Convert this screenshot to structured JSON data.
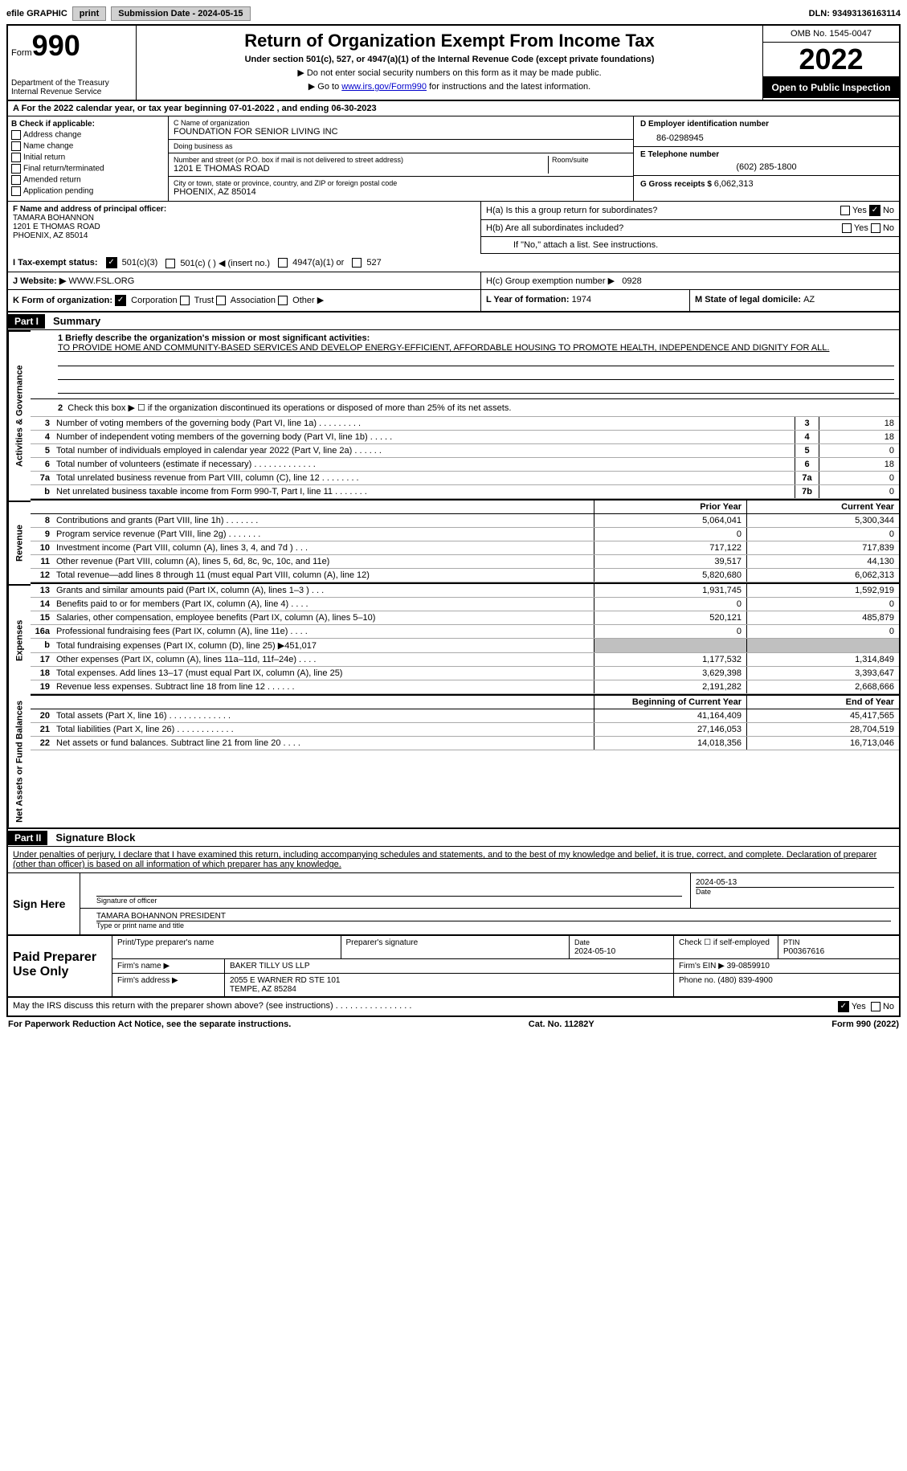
{
  "topbar": {
    "efile": "efile GRAPHIC",
    "print": "print",
    "submission_label": "Submission Date - ",
    "submission_date": "2024-05-15",
    "dln_label": "DLN: ",
    "dln": "93493136163114"
  },
  "header": {
    "form_label": "Form",
    "form_number": "990",
    "dept": "Department of the Treasury Internal Revenue Service",
    "title": "Return of Organization Exempt From Income Tax",
    "sub": "Under section 501(c), 527, or 4947(a)(1) of the Internal Revenue Code (except private foundations)",
    "note1": "▶ Do not enter social security numbers on this form as it may be made public.",
    "note2_pre": "▶ Go to ",
    "note2_link": "www.irs.gov/Form990",
    "note2_post": " for instructions and the latest information.",
    "omb": "OMB No. 1545-0047",
    "year": "2022",
    "inspection": "Open to Public Inspection"
  },
  "period": {
    "text": "A For the 2022 calendar year, or tax year beginning 07-01-2022    , and ending 06-30-2023"
  },
  "sectionB": {
    "label": "B Check if applicable:",
    "opts": [
      "Address change",
      "Name change",
      "Initial return",
      "Final return/terminated",
      "Amended return",
      "Application pending"
    ]
  },
  "sectionC": {
    "name_label": "C Name of organization",
    "name": "FOUNDATION FOR SENIOR LIVING INC",
    "dba_label": "Doing business as",
    "dba": "",
    "street_label": "Number and street (or P.O. box if mail is not delivered to street address)",
    "room_label": "Room/suite",
    "street": "1201 E THOMAS ROAD",
    "city_label": "City or town, state or province, country, and ZIP or foreign postal code",
    "city": "PHOENIX, AZ  85014"
  },
  "sectionD": {
    "label": "D Employer identification number",
    "value": "86-0298945"
  },
  "sectionE": {
    "label": "E Telephone number",
    "value": "(602) 285-1800"
  },
  "sectionG": {
    "label": "G Gross receipts $ ",
    "value": "6,062,313"
  },
  "sectionF": {
    "label": "F Name and address of principal officer:",
    "name": "TAMARA BOHANNON",
    "street": "1201 E THOMAS ROAD",
    "city": "PHOENIX, AZ  85014"
  },
  "sectionH": {
    "ha_label": "H(a)  Is this a group return for subordinates?",
    "hb_label": "H(b)  Are all subordinates included?",
    "hb_note": "If \"No,\" attach a list. See instructions.",
    "hc_label": "H(c)  Group exemption number ▶",
    "hc_value": "0928",
    "yes": "Yes",
    "no": "No"
  },
  "sectionI": {
    "label": "I  Tax-exempt status:",
    "c3": "501(c)(3)",
    "c": "501(c) (  ) ◀ (insert no.)",
    "a1": "4947(a)(1) or",
    "s527": "527"
  },
  "sectionJ": {
    "label": "J  Website: ▶",
    "value": "WWW.FSL.ORG"
  },
  "sectionK": {
    "label": "K Form of organization:",
    "opts": [
      "Corporation",
      "Trust",
      "Association",
      "Other ▶"
    ]
  },
  "sectionL": {
    "label": "L Year of formation: ",
    "value": "1974"
  },
  "sectionM": {
    "label": "M State of legal domicile: ",
    "value": "AZ"
  },
  "part1": {
    "header": "Part I",
    "title": "Summary",
    "line1_label": "1  Briefly describe the organization's mission or most significant activities:",
    "mission": "TO PROVIDE HOME AND COMMUNITY-BASED SERVICES AND DEVELOP ENERGY-EFFICIENT, AFFORDABLE HOUSING TO PROMOTE HEALTH, INDEPENDENCE AND DIGNITY FOR ALL.",
    "line2": "Check this box ▶ ☐  if the organization discontinued its operations or disposed of more than 25% of its net assets.",
    "lines_gov": [
      {
        "num": "3",
        "desc": "Number of voting members of the governing body (Part VI, line 1a)   .    .    .    .    .    .    .    .    .",
        "box": "3",
        "val": "18"
      },
      {
        "num": "4",
        "desc": "Number of independent voting members of the governing body (Part VI, line 1b)   .    .    .    .    .",
        "box": "4",
        "val": "18"
      },
      {
        "num": "5",
        "desc": "Total number of individuals employed in calendar year 2022 (Part V, line 2a)   .    .    .    .    .    .",
        "box": "5",
        "val": "0"
      },
      {
        "num": "6",
        "desc": "Total number of volunteers (estimate if necessary)    .    .    .    .    .    .    .    .    .    .    .    .    .",
        "box": "6",
        "val": "18"
      },
      {
        "num": "7a",
        "desc": "Total unrelated business revenue from Part VIII, column (C), line 12   .    .    .    .    .    .    .    .",
        "box": "7a",
        "val": "0"
      },
      {
        "num": "b",
        "desc": "Net unrelated business taxable income from Form 990-T, Part I, line 11   .    .    .    .    .    .    .",
        "box": "7b",
        "val": "0"
      }
    ],
    "col_prior": "Prior Year",
    "col_current": "Current Year",
    "lines_rev": [
      {
        "num": "8",
        "desc": "Contributions and grants (Part VIII, line 1h)    .    .    .    .    .    .    .",
        "c1": "5,064,041",
        "c2": "5,300,344"
      },
      {
        "num": "9",
        "desc": "Program service revenue (Part VIII, line 2g)    .    .    .    .    .    .    .",
        "c1": "0",
        "c2": "0"
      },
      {
        "num": "10",
        "desc": "Investment income (Part VIII, column (A), lines 3, 4, and 7d )    .    .    .",
        "c1": "717,122",
        "c2": "717,839"
      },
      {
        "num": "11",
        "desc": "Other revenue (Part VIII, column (A), lines 5, 6d, 8c, 9c, 10c, and 11e)",
        "c1": "39,517",
        "c2": "44,130"
      },
      {
        "num": "12",
        "desc": "Total revenue—add lines 8 through 11 (must equal Part VIII, column (A), line 12)",
        "c1": "5,820,680",
        "c2": "6,062,313"
      }
    ],
    "lines_exp": [
      {
        "num": "13",
        "desc": "Grants and similar amounts paid (Part IX, column (A), lines 1–3 )   .    .    .",
        "c1": "1,931,745",
        "c2": "1,592,919"
      },
      {
        "num": "14",
        "desc": "Benefits paid to or for members (Part IX, column (A), line 4)   .    .    .    .",
        "c1": "0",
        "c2": "0"
      },
      {
        "num": "15",
        "desc": "Salaries, other compensation, employee benefits (Part IX, column (A), lines 5–10)",
        "c1": "520,121",
        "c2": "485,879"
      },
      {
        "num": "16a",
        "desc": "Professional fundraising fees (Part IX, column (A), line 11e)   .    .    .    .",
        "c1": "0",
        "c2": "0"
      },
      {
        "num": "b",
        "desc": "Total fundraising expenses (Part IX, column (D), line 25) ▶451,017",
        "c1": "",
        "c2": "",
        "grey": true
      },
      {
        "num": "17",
        "desc": "Other expenses (Part IX, column (A), lines 11a–11d, 11f–24e)    .    .    .    .",
        "c1": "1,177,532",
        "c2": "1,314,849"
      },
      {
        "num": "18",
        "desc": "Total expenses. Add lines 13–17 (must equal Part IX, column (A), line 25)",
        "c1": "3,629,398",
        "c2": "3,393,647"
      },
      {
        "num": "19",
        "desc": "Revenue less expenses. Subtract line 18 from line 12   .    .    .    .    .    .",
        "c1": "2,191,282",
        "c2": "2,668,666"
      }
    ],
    "col_begin": "Beginning of Current Year",
    "col_end": "End of Year",
    "lines_net": [
      {
        "num": "20",
        "desc": "Total assets (Part X, line 16)   .    .    .    .    .    .    .    .    .    .    .    .    .",
        "c1": "41,164,409",
        "c2": "45,417,565"
      },
      {
        "num": "21",
        "desc": "Total liabilities (Part X, line 26)   .    .    .    .    .    .    .    .    .    .    .    .",
        "c1": "27,146,053",
        "c2": "28,704,519"
      },
      {
        "num": "22",
        "desc": "Net assets or fund balances. Subtract line 21 from line 20    .    .    .    .",
        "c1": "14,018,356",
        "c2": "16,713,046"
      }
    ]
  },
  "part2": {
    "header": "Part II",
    "title": "Signature Block",
    "text": "Under penalties of perjury, I declare that I have examined this return, including accompanying schedules and statements, and to the best of my knowledge and belief, it is true, correct, and complete. Declaration of preparer (other than officer) is based on all information of which preparer has any knowledge."
  },
  "sign": {
    "label": "Sign Here",
    "sig_caption": "Signature of officer",
    "date": "2024-05-13",
    "date_caption": "Date",
    "name": "TAMARA BOHANNON  PRESIDENT",
    "name_caption": "Type or print name and title"
  },
  "preparer": {
    "label": "Paid Preparer Use Only",
    "h_name": "Print/Type preparer's name",
    "h_sig": "Preparer's signature",
    "h_date": "Date",
    "date": "2024-05-10",
    "h_check": "Check ☐ if self-employed",
    "h_ptin": "PTIN",
    "ptin": "P00367616",
    "firm_label": "Firm's name    ▶",
    "firm": "BAKER TILLY US LLP",
    "ein_label": "Firm's EIN ▶",
    "ein": "39-0859910",
    "addr_label": "Firm's address ▶",
    "addr1": "2055 E WARNER RD STE 101",
    "addr2": "TEMPE, AZ  85284",
    "phone_label": "Phone no. ",
    "phone": "(480) 839-4900"
  },
  "discuss": {
    "text": "May the IRS discuss this return with the preparer shown above? (see instructions)    .    .    .    .    .    .    .    .    .    .    .    .    .    .    .    .",
    "yes": "Yes",
    "no": "No"
  },
  "footer": {
    "left": "For Paperwork Reduction Act Notice, see the separate instructions.",
    "mid": "Cat. No. 11282Y",
    "right": "Form 990 (2022)"
  },
  "side_labels": {
    "gov": "Activities & Governance",
    "rev": "Revenue",
    "exp": "Expenses",
    "net": "Net Assets or Fund Balances"
  }
}
